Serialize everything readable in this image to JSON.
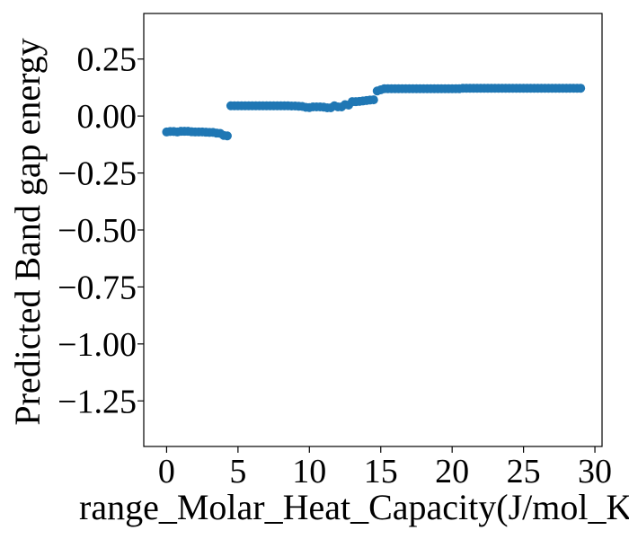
{
  "chart_data": {
    "type": "scatter",
    "title": "",
    "xlabel": "range_Molar_Heat_Capacity(J/mol_K)",
    "ylabel": "Predicted Band gap energy",
    "xlim": [
      -1.6,
      30.5
    ],
    "ylim": [
      -1.45,
      0.45
    ],
    "xticks": [
      0,
      5,
      10,
      15,
      20,
      25,
      30
    ],
    "yticks": [
      0.25,
      0.0,
      -0.25,
      -0.5,
      -0.75,
      -1.0,
      -1.25
    ],
    "ytick_labels": [
      "0.25",
      "0.00",
      "−0.25",
      "−0.50",
      "−0.75",
      "−1.00",
      "−1.25"
    ],
    "xtick_labels": [
      "0",
      "5",
      "10",
      "15",
      "20",
      "25",
      "30"
    ],
    "grid": false,
    "marker_color": "#1f77b4",
    "series": [
      {
        "x": [
          0.0,
          0.25,
          0.5,
          0.75,
          1.0,
          1.25,
          1.5,
          1.75,
          2.0,
          2.25,
          2.5,
          2.75,
          3.0,
          3.25,
          3.5,
          3.75,
          4.0,
          4.25,
          4.5,
          4.75,
          5.0,
          5.25,
          5.5,
          5.75,
          6.0,
          6.25,
          6.5,
          6.75,
          7.0,
          7.25,
          7.5,
          7.75,
          8.0,
          8.25,
          8.5,
          8.75,
          9.0,
          9.25,
          9.5,
          9.75,
          10.0,
          10.25,
          10.5,
          10.75,
          11.0,
          11.25,
          11.5,
          11.75,
          12.0,
          12.25,
          12.5,
          12.75,
          13.0,
          13.25,
          13.5,
          13.75,
          14.0,
          14.25,
          14.5,
          14.75,
          15.0,
          15.25,
          15.5,
          15.75,
          16.0,
          16.25,
          16.5,
          16.75,
          17.0,
          17.25,
          17.5,
          17.75,
          18.0,
          18.25,
          18.5,
          18.75,
          19.0,
          19.25,
          19.5,
          19.75,
          20.0,
          20.25,
          20.5,
          20.75,
          21.0,
          21.25,
          21.5,
          21.75,
          22.0,
          22.25,
          22.5,
          22.75,
          23.0,
          23.25,
          23.5,
          23.75,
          24.0,
          24.25,
          24.5,
          24.75,
          25.0,
          25.25,
          25.5,
          25.75,
          26.0,
          26.25,
          26.5,
          26.75,
          27.0,
          27.25,
          27.5,
          27.75,
          28.0,
          28.25,
          28.5,
          28.75,
          29.0
        ],
        "y": [
          -0.07,
          -0.068,
          -0.068,
          -0.07,
          -0.067,
          -0.067,
          -0.067,
          -0.069,
          -0.07,
          -0.07,
          -0.07,
          -0.071,
          -0.072,
          -0.072,
          -0.075,
          -0.076,
          -0.085,
          -0.087,
          0.045,
          0.045,
          0.045,
          0.045,
          0.045,
          0.045,
          0.045,
          0.045,
          0.045,
          0.045,
          0.045,
          0.045,
          0.045,
          0.045,
          0.045,
          0.045,
          0.045,
          0.044,
          0.044,
          0.043,
          0.042,
          0.038,
          0.037,
          0.04,
          0.04,
          0.04,
          0.039,
          0.036,
          0.036,
          0.045,
          0.04,
          0.04,
          0.05,
          0.048,
          0.063,
          0.063,
          0.064,
          0.066,
          0.068,
          0.07,
          0.071,
          0.11,
          0.115,
          0.12,
          0.12,
          0.12,
          0.12,
          0.12,
          0.12,
          0.12,
          0.12,
          0.12,
          0.12,
          0.12,
          0.12,
          0.12,
          0.12,
          0.12,
          0.12,
          0.12,
          0.12,
          0.12,
          0.12,
          0.12,
          0.12,
          0.122,
          0.122,
          0.122,
          0.122,
          0.122,
          0.122,
          0.122,
          0.122,
          0.122,
          0.122,
          0.122,
          0.122,
          0.122,
          0.122,
          0.122,
          0.122,
          0.122,
          0.122,
          0.122,
          0.122,
          0.122,
          0.122,
          0.122,
          0.122,
          0.122,
          0.122,
          0.122,
          0.122,
          0.122,
          0.122,
          0.122,
          0.122,
          0.122,
          0.122
        ]
      }
    ]
  }
}
